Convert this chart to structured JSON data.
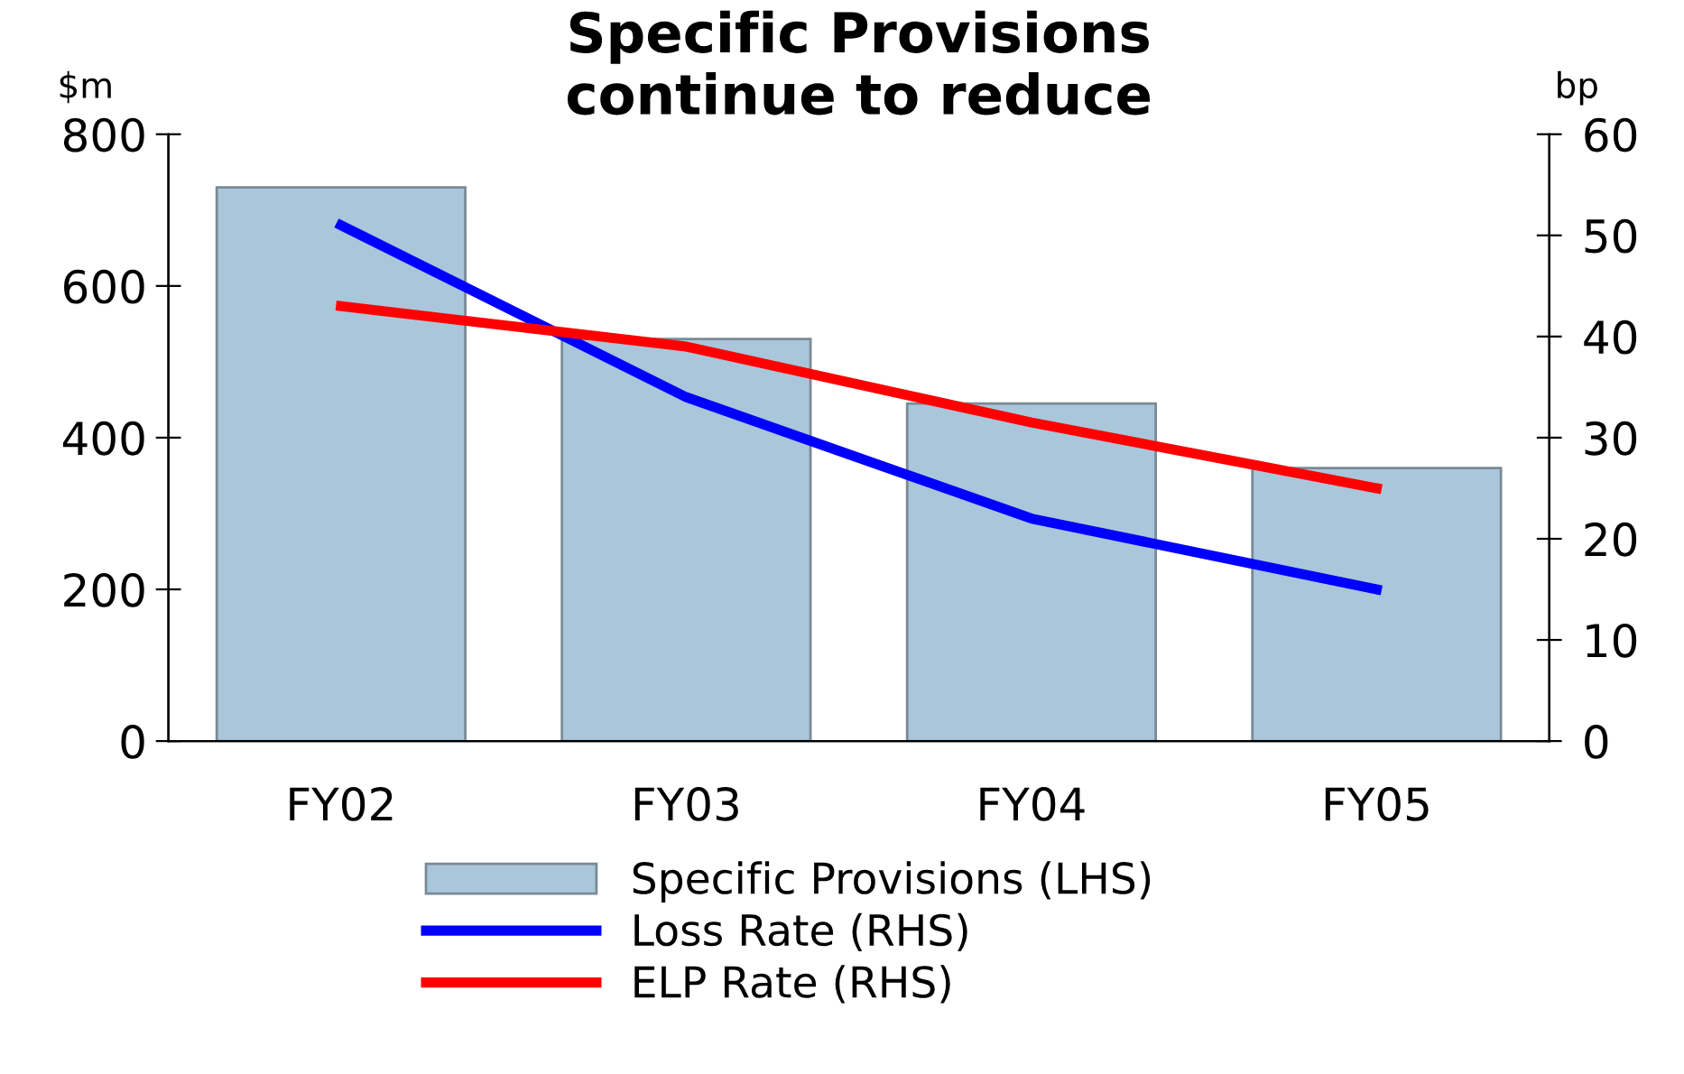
{
  "chart_data": {
    "type": "bar",
    "title": "Specific Provisions\ncontinue to reduce",
    "ylabel": "$m",
    "y2label": "bp",
    "categories": [
      "FY02",
      "FY03",
      "FY04",
      "FY05"
    ],
    "series": [
      {
        "name": "Specific Provisions (LHS)",
        "color": "#a9c6da",
        "values": [
          730,
          530,
          445,
          360
        ]
      },
      {
        "name": "Loss Rate (RHS)",
        "type": "line",
        "axis": "y2",
        "color": "#0000ff",
        "values": [
          51,
          34,
          22,
          15
        ]
      },
      {
        "name": "ELP Rate (RHS)",
        "type": "line",
        "axis": "y2",
        "color": "#ff0000",
        "values": [
          43,
          39,
          31.5,
          25
        ]
      }
    ],
    "ylim": [
      0,
      800
    ],
    "yticks": [
      0,
      200,
      400,
      600,
      800
    ],
    "y2lim": [
      0,
      60
    ],
    "y2ticks": [
      0,
      10,
      20,
      30,
      40,
      50,
      60
    ],
    "grid": false,
    "legend": "bottom",
    "marker": "none",
    "line_style": "solid"
  }
}
